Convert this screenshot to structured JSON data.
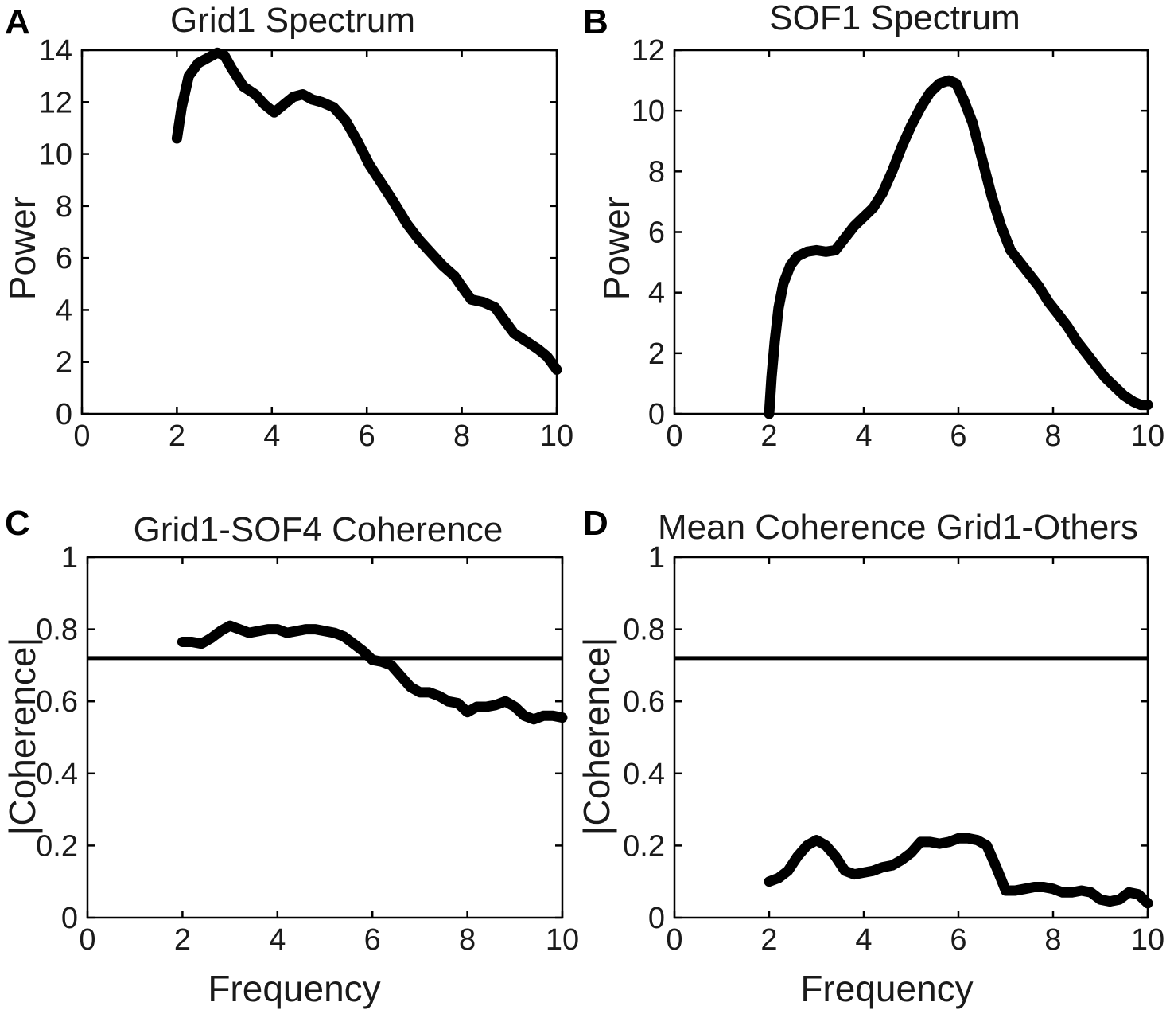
{
  "colors": {
    "line": "#000000",
    "background": "#ffffff"
  },
  "chart_data": [
    {
      "panel": "A",
      "type": "line",
      "title": "Grid1 Spectrum",
      "xlabel": "",
      "ylabel": "Power",
      "xlim": [
        0,
        10
      ],
      "ylim": [
        0,
        14
      ],
      "xticks": [
        0,
        2,
        4,
        6,
        8,
        10
      ],
      "yticks": [
        0,
        2,
        4,
        6,
        8,
        10,
        12,
        14
      ],
      "series": [
        {
          "name": "Grid1",
          "x": [
            2.0,
            2.1,
            2.25,
            2.45,
            2.65,
            2.85,
            3.0,
            3.15,
            3.4,
            3.65,
            3.85,
            4.05,
            4.25,
            4.45,
            4.65,
            4.85,
            5.05,
            5.3,
            5.55,
            5.8,
            6.05,
            6.3,
            6.55,
            6.85,
            7.1,
            7.35,
            7.6,
            7.85,
            8.0,
            8.2,
            8.45,
            8.7,
            8.9,
            9.1,
            9.35,
            9.6,
            9.8,
            10.0
          ],
          "y": [
            10.6,
            11.8,
            13.0,
            13.5,
            13.7,
            13.9,
            13.8,
            13.3,
            12.6,
            12.3,
            11.9,
            11.6,
            11.9,
            12.2,
            12.3,
            12.1,
            12.0,
            11.8,
            11.3,
            10.5,
            9.6,
            8.9,
            8.2,
            7.3,
            6.7,
            6.2,
            5.7,
            5.3,
            4.9,
            4.4,
            4.3,
            4.1,
            3.6,
            3.1,
            2.8,
            2.5,
            2.2,
            1.7
          ]
        }
      ]
    },
    {
      "panel": "B",
      "type": "line",
      "title": "SOF1 Spectrum",
      "xlabel": "",
      "ylabel": "Power",
      "xlim": [
        0,
        10
      ],
      "ylim": [
        0,
        12
      ],
      "xticks": [
        0,
        2,
        4,
        6,
        8,
        10
      ],
      "yticks": [
        0,
        2,
        4,
        6,
        8,
        10,
        12
      ],
      "series": [
        {
          "name": "SOF1",
          "x": [
            2.0,
            2.05,
            2.12,
            2.2,
            2.3,
            2.45,
            2.6,
            2.8,
            3.0,
            3.2,
            3.4,
            3.6,
            3.8,
            4.0,
            4.2,
            4.4,
            4.6,
            4.8,
            5.0,
            5.2,
            5.4,
            5.6,
            5.8,
            5.95,
            6.1,
            6.3,
            6.5,
            6.7,
            6.9,
            7.1,
            7.3,
            7.5,
            7.7,
            7.9,
            8.1,
            8.3,
            8.5,
            8.7,
            8.9,
            9.1,
            9.3,
            9.5,
            9.7,
            9.85,
            10.0
          ],
          "y": [
            0.0,
            1.2,
            2.4,
            3.5,
            4.3,
            4.9,
            5.2,
            5.35,
            5.4,
            5.35,
            5.4,
            5.8,
            6.2,
            6.5,
            6.8,
            7.3,
            8.0,
            8.8,
            9.5,
            10.1,
            10.6,
            10.9,
            11.0,
            10.9,
            10.4,
            9.6,
            8.4,
            7.2,
            6.2,
            5.4,
            5.0,
            4.6,
            4.2,
            3.7,
            3.3,
            2.9,
            2.4,
            2.0,
            1.6,
            1.2,
            0.9,
            0.6,
            0.4,
            0.3,
            0.3
          ]
        }
      ]
    },
    {
      "panel": "C",
      "type": "line",
      "title": "Grid1-SOF4 Coherence",
      "xlabel": "Frequency",
      "ylabel": "|Coherence|",
      "xlim": [
        0,
        10
      ],
      "ylim": [
        0,
        1
      ],
      "xticks": [
        0,
        2,
        4,
        6,
        8,
        10
      ],
      "yticks": [
        0,
        0.2,
        0.4,
        0.6,
        0.8,
        1
      ],
      "yticklabels": [
        "0",
        "0.2",
        "0.4",
        "0.6",
        "0.8",
        "1"
      ],
      "threshold": 0.72,
      "series": [
        {
          "name": "Grid1-SOF4",
          "x": [
            2.0,
            2.2,
            2.4,
            2.6,
            2.8,
            3.0,
            3.2,
            3.4,
            3.6,
            3.8,
            4.0,
            4.2,
            4.4,
            4.6,
            4.8,
            5.0,
            5.2,
            5.4,
            5.6,
            5.8,
            6.0,
            6.2,
            6.4,
            6.6,
            6.8,
            7.0,
            7.2,
            7.4,
            7.6,
            7.8,
            8.0,
            8.2,
            8.4,
            8.6,
            8.8,
            9.0,
            9.2,
            9.4,
            9.6,
            9.8,
            10.0
          ],
          "y": [
            0.765,
            0.765,
            0.76,
            0.775,
            0.795,
            0.81,
            0.8,
            0.79,
            0.795,
            0.8,
            0.8,
            0.79,
            0.795,
            0.8,
            0.8,
            0.795,
            0.79,
            0.78,
            0.76,
            0.74,
            0.715,
            0.71,
            0.7,
            0.67,
            0.64,
            0.625,
            0.625,
            0.615,
            0.6,
            0.595,
            0.57,
            0.585,
            0.585,
            0.59,
            0.6,
            0.585,
            0.56,
            0.55,
            0.56,
            0.56,
            0.555
          ]
        }
      ]
    },
    {
      "panel": "D",
      "type": "line",
      "title": "Mean Coherence Grid1-Others",
      "xlabel": "Frequency",
      "ylabel": "|Coherence|",
      "xlim": [
        0,
        10
      ],
      "ylim": [
        0,
        1
      ],
      "xticks": [
        0,
        2,
        4,
        6,
        8,
        10
      ],
      "yticks": [
        0,
        0.2,
        0.4,
        0.6,
        0.8,
        1
      ],
      "yticklabels": [
        "0",
        "0.2",
        "0.4",
        "0.6",
        "0.8",
        "1"
      ],
      "threshold": 0.72,
      "series": [
        {
          "name": "Mean Grid1-Others",
          "x": [
            2.0,
            2.2,
            2.4,
            2.6,
            2.8,
            3.0,
            3.2,
            3.4,
            3.6,
            3.8,
            4.0,
            4.2,
            4.4,
            4.6,
            4.8,
            5.0,
            5.2,
            5.4,
            5.6,
            5.8,
            6.0,
            6.2,
            6.4,
            6.6,
            6.8,
            7.0,
            7.2,
            7.4,
            7.6,
            7.8,
            8.0,
            8.2,
            8.4,
            8.6,
            8.8,
            9.0,
            9.2,
            9.4,
            9.6,
            9.8,
            10.0
          ],
          "y": [
            0.1,
            0.11,
            0.13,
            0.17,
            0.2,
            0.215,
            0.2,
            0.17,
            0.13,
            0.12,
            0.125,
            0.13,
            0.14,
            0.145,
            0.16,
            0.18,
            0.21,
            0.21,
            0.205,
            0.21,
            0.22,
            0.22,
            0.215,
            0.2,
            0.14,
            0.075,
            0.075,
            0.08,
            0.085,
            0.085,
            0.08,
            0.07,
            0.07,
            0.075,
            0.07,
            0.05,
            0.045,
            0.05,
            0.07,
            0.065,
            0.04
          ]
        }
      ]
    }
  ]
}
